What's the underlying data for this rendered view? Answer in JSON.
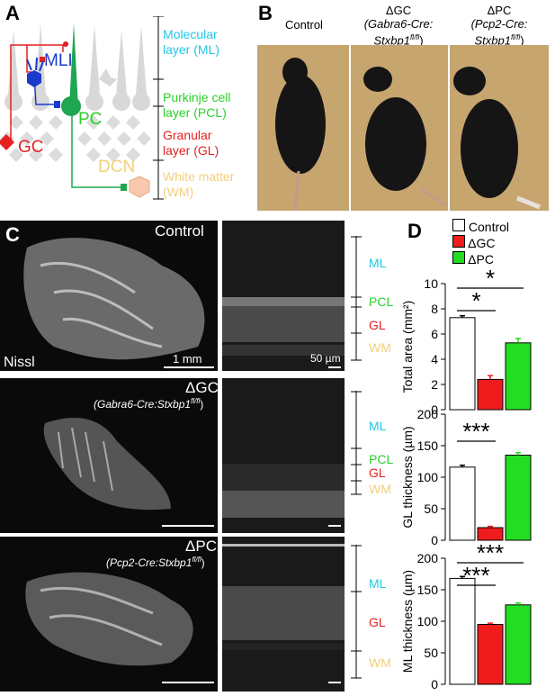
{
  "panels": {
    "a": {
      "letter": "A",
      "labels": {
        "mli": "MLI",
        "pc": "PC",
        "gc": "GC",
        "dcn": "DCN",
        "layers": [
          {
            "text": "Molecular\nlayer (ML)",
            "color": "#22c6e6"
          },
          {
            "text": "Purkinje cell\nlayer (PCL)",
            "color": "#2bd02b"
          },
          {
            "text": "Granular\nlayer (GL)",
            "color": "#e51f1f"
          },
          {
            "text": "White matter\n(WM)",
            "color": "#f3cf7b"
          }
        ]
      }
    },
    "b": {
      "letter": "B",
      "headers": [
        {
          "line1": "Control",
          "line2": "",
          "line3": ""
        },
        {
          "line1": "ΔGC",
          "line2": "(Gabra6-Cre:",
          "line3": "Stxbp1"
        },
        {
          "line1": "ΔPC",
          "line2": "(Pcp2-Cre:",
          "line3": "Stxbp1"
        }
      ],
      "superscript": "fl/fl",
      "close_paren": ")"
    },
    "c": {
      "letter": "C",
      "rows": [
        {
          "title": "Control",
          "subtitle": "",
          "scale": "1 mm",
          "stain": "Nissl",
          "micro_scale": "50 µm",
          "layers": [
            "ML",
            "PCL",
            "GL",
            "WM"
          ]
        },
        {
          "title": "ΔGC",
          "subtitle_pre": "(Gabra6-Cre:Stxbp1",
          "subtitle_sup": "fl/fl",
          "subtitle_post": ")",
          "layers": [
            "ML",
            "PCL",
            "GL",
            "WM"
          ]
        },
        {
          "title": "ΔPC",
          "subtitle_pre": "(Pcp2-Cre:Stxbp1",
          "subtitle_sup": "fl/fl",
          "subtitle_post": ")",
          "layers": [
            "ML",
            "GL",
            "WM"
          ]
        }
      ]
    },
    "d": {
      "letter": "D",
      "legend": [
        {
          "label": "Control",
          "color": "#ffffff"
        },
        {
          "label": "ΔGC",
          "color": "#ee1c1c"
        },
        {
          "label": "ΔPC",
          "color": "#22dd22"
        }
      ]
    }
  },
  "chart_data": [
    {
      "type": "bar",
      "categories": [
        "Control",
        "ΔGC",
        "ΔPC"
      ],
      "values": [
        7.3,
        2.4,
        5.3
      ],
      "errors": [
        0.15,
        0.3,
        0.35
      ],
      "ylabel": "Total area (mm²)",
      "ylim": [
        0,
        10
      ],
      "yticks": [
        0,
        2,
        4,
        6,
        8,
        10
      ],
      "significance": [
        {
          "pair": [
            0,
            1
          ],
          "label": "*"
        },
        {
          "pair": [
            0,
            2
          ],
          "label": "*"
        }
      ]
    },
    {
      "type": "bar",
      "categories": [
        "Control",
        "ΔGC",
        "ΔPC"
      ],
      "values": [
        116,
        20,
        135
      ],
      "errors": [
        3,
        2,
        4
      ],
      "ylabel": "GL thickness (µm)",
      "ylim": [
        0,
        200
      ],
      "yticks": [
        0,
        50,
        100,
        150,
        200
      ],
      "significance": [
        {
          "pair": [
            0,
            1
          ],
          "label": "***"
        }
      ]
    },
    {
      "type": "bar",
      "categories": [
        "Control",
        "ΔGC",
        "ΔPC"
      ],
      "values": [
        168,
        95,
        126
      ],
      "errors": [
        3,
        2,
        3
      ],
      "ylabel": "ML thickness (µm)",
      "ylim": [
        0,
        200
      ],
      "yticks": [
        0,
        50,
        100,
        150,
        200
      ],
      "significance": [
        {
          "pair": [
            0,
            1
          ],
          "label": "***"
        },
        {
          "pair": [
            0,
            2
          ],
          "label": "***"
        }
      ]
    }
  ]
}
